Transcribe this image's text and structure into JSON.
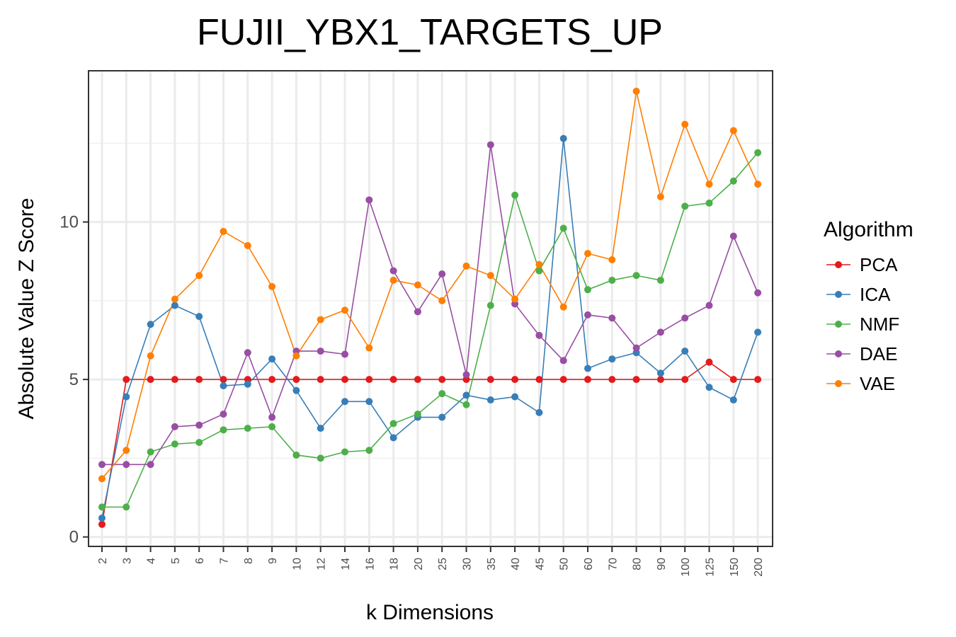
{
  "chart_data": {
    "type": "line",
    "title": "FUJII_YBX1_TARGETS_UP",
    "xlabel": "k Dimensions",
    "ylabel": "Absolute Value Z Score",
    "categories": [
      "2",
      "3",
      "4",
      "5",
      "6",
      "7",
      "8",
      "9",
      "10",
      "12",
      "14",
      "16",
      "18",
      "20",
      "25",
      "30",
      "35",
      "40",
      "45",
      "50",
      "60",
      "70",
      "80",
      "90",
      "100",
      "125",
      "150",
      "200"
    ],
    "ylim": [
      -0.3,
      14.8
    ],
    "yticks": [
      0,
      5,
      10
    ],
    "grid": true,
    "legend": {
      "title": "Algorithm",
      "position": "right"
    },
    "series": [
      {
        "name": "PCA",
        "color": "#e41a1c",
        "values": [
          0.4,
          5.0,
          5.0,
          5.0,
          5.0,
          5.0,
          5.0,
          5.0,
          5.0,
          5.0,
          5.0,
          5.0,
          5.0,
          5.0,
          5.0,
          5.0,
          5.0,
          5.0,
          5.0,
          5.0,
          5.0,
          5.0,
          5.0,
          5.0,
          5.0,
          5.55,
          5.0,
          5.0
        ]
      },
      {
        "name": "ICA",
        "color": "#377eb8",
        "values": [
          0.6,
          4.45,
          6.75,
          7.35,
          7.0,
          4.8,
          4.85,
          5.65,
          4.65,
          3.45,
          4.3,
          4.3,
          3.15,
          3.8,
          3.8,
          4.5,
          4.35,
          4.45,
          3.95,
          12.65,
          5.35,
          5.65,
          5.85,
          5.2,
          5.9,
          4.75,
          4.35,
          6.5
        ]
      },
      {
        "name": "NMF",
        "color": "#4daf4a",
        "values": [
          0.95,
          0.95,
          2.7,
          2.95,
          3.0,
          3.4,
          3.45,
          3.5,
          2.6,
          2.5,
          2.7,
          2.75,
          3.6,
          3.9,
          4.55,
          4.2,
          7.35,
          10.85,
          8.45,
          9.8,
          7.85,
          8.15,
          8.3,
          8.15,
          10.5,
          10.6,
          11.3,
          12.2
        ]
      },
      {
        "name": "DAE",
        "color": "#984ea3",
        "values": [
          2.3,
          2.3,
          2.3,
          3.5,
          3.55,
          3.9,
          5.85,
          3.8,
          5.9,
          5.9,
          5.8,
          10.7,
          8.45,
          7.15,
          8.35,
          5.15,
          12.45,
          7.4,
          6.4,
          5.6,
          7.05,
          6.95,
          6.0,
          6.5,
          6.95,
          7.35,
          9.55,
          7.75
        ]
      },
      {
        "name": "VAE",
        "color": "#ff7f00",
        "values": [
          1.85,
          2.75,
          5.75,
          7.55,
          8.3,
          9.7,
          9.25,
          7.95,
          5.75,
          6.9,
          7.2,
          6.0,
          8.15,
          8.0,
          7.5,
          8.6,
          8.3,
          7.55,
          8.65,
          7.3,
          9.0,
          8.8,
          14.15,
          10.8,
          13.1,
          11.2,
          12.9,
          11.2
        ]
      }
    ]
  }
}
